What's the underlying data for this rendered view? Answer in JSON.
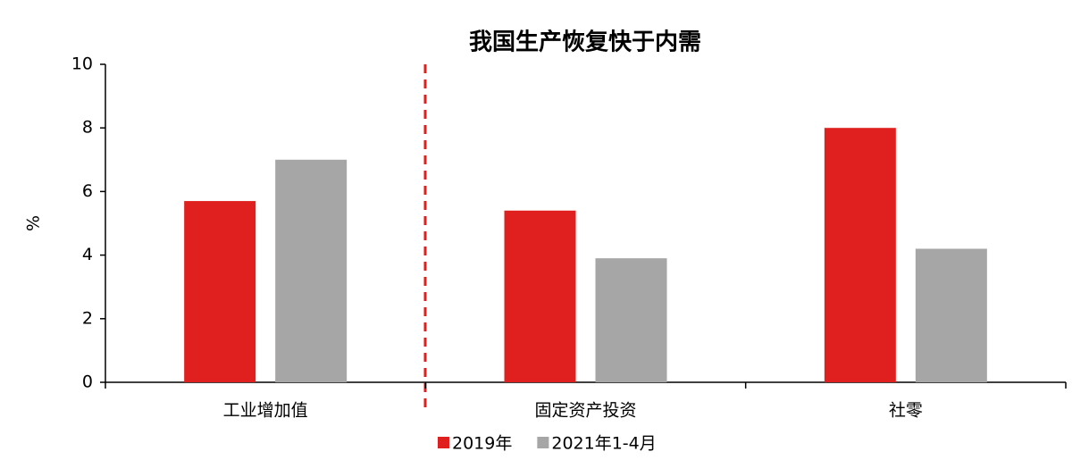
{
  "chart_data": {
    "type": "bar",
    "title": "我国生产恢复快于内需",
    "y_label": "%",
    "categories": [
      "工业增加值",
      "固定资产投资",
      "社零"
    ],
    "series": [
      {
        "name": "2019年",
        "color": "#e0201e",
        "values": [
          5.7,
          5.4,
          8.0
        ]
      },
      {
        "name": "2021年1-4月",
        "color": "#a6a6a6",
        "values": [
          7.0,
          3.9,
          4.2
        ]
      }
    ],
    "ylim": [
      0,
      10
    ],
    "yticks": [
      0,
      2,
      4,
      6,
      8,
      10
    ],
    "grid": false,
    "legend": "bottom"
  }
}
